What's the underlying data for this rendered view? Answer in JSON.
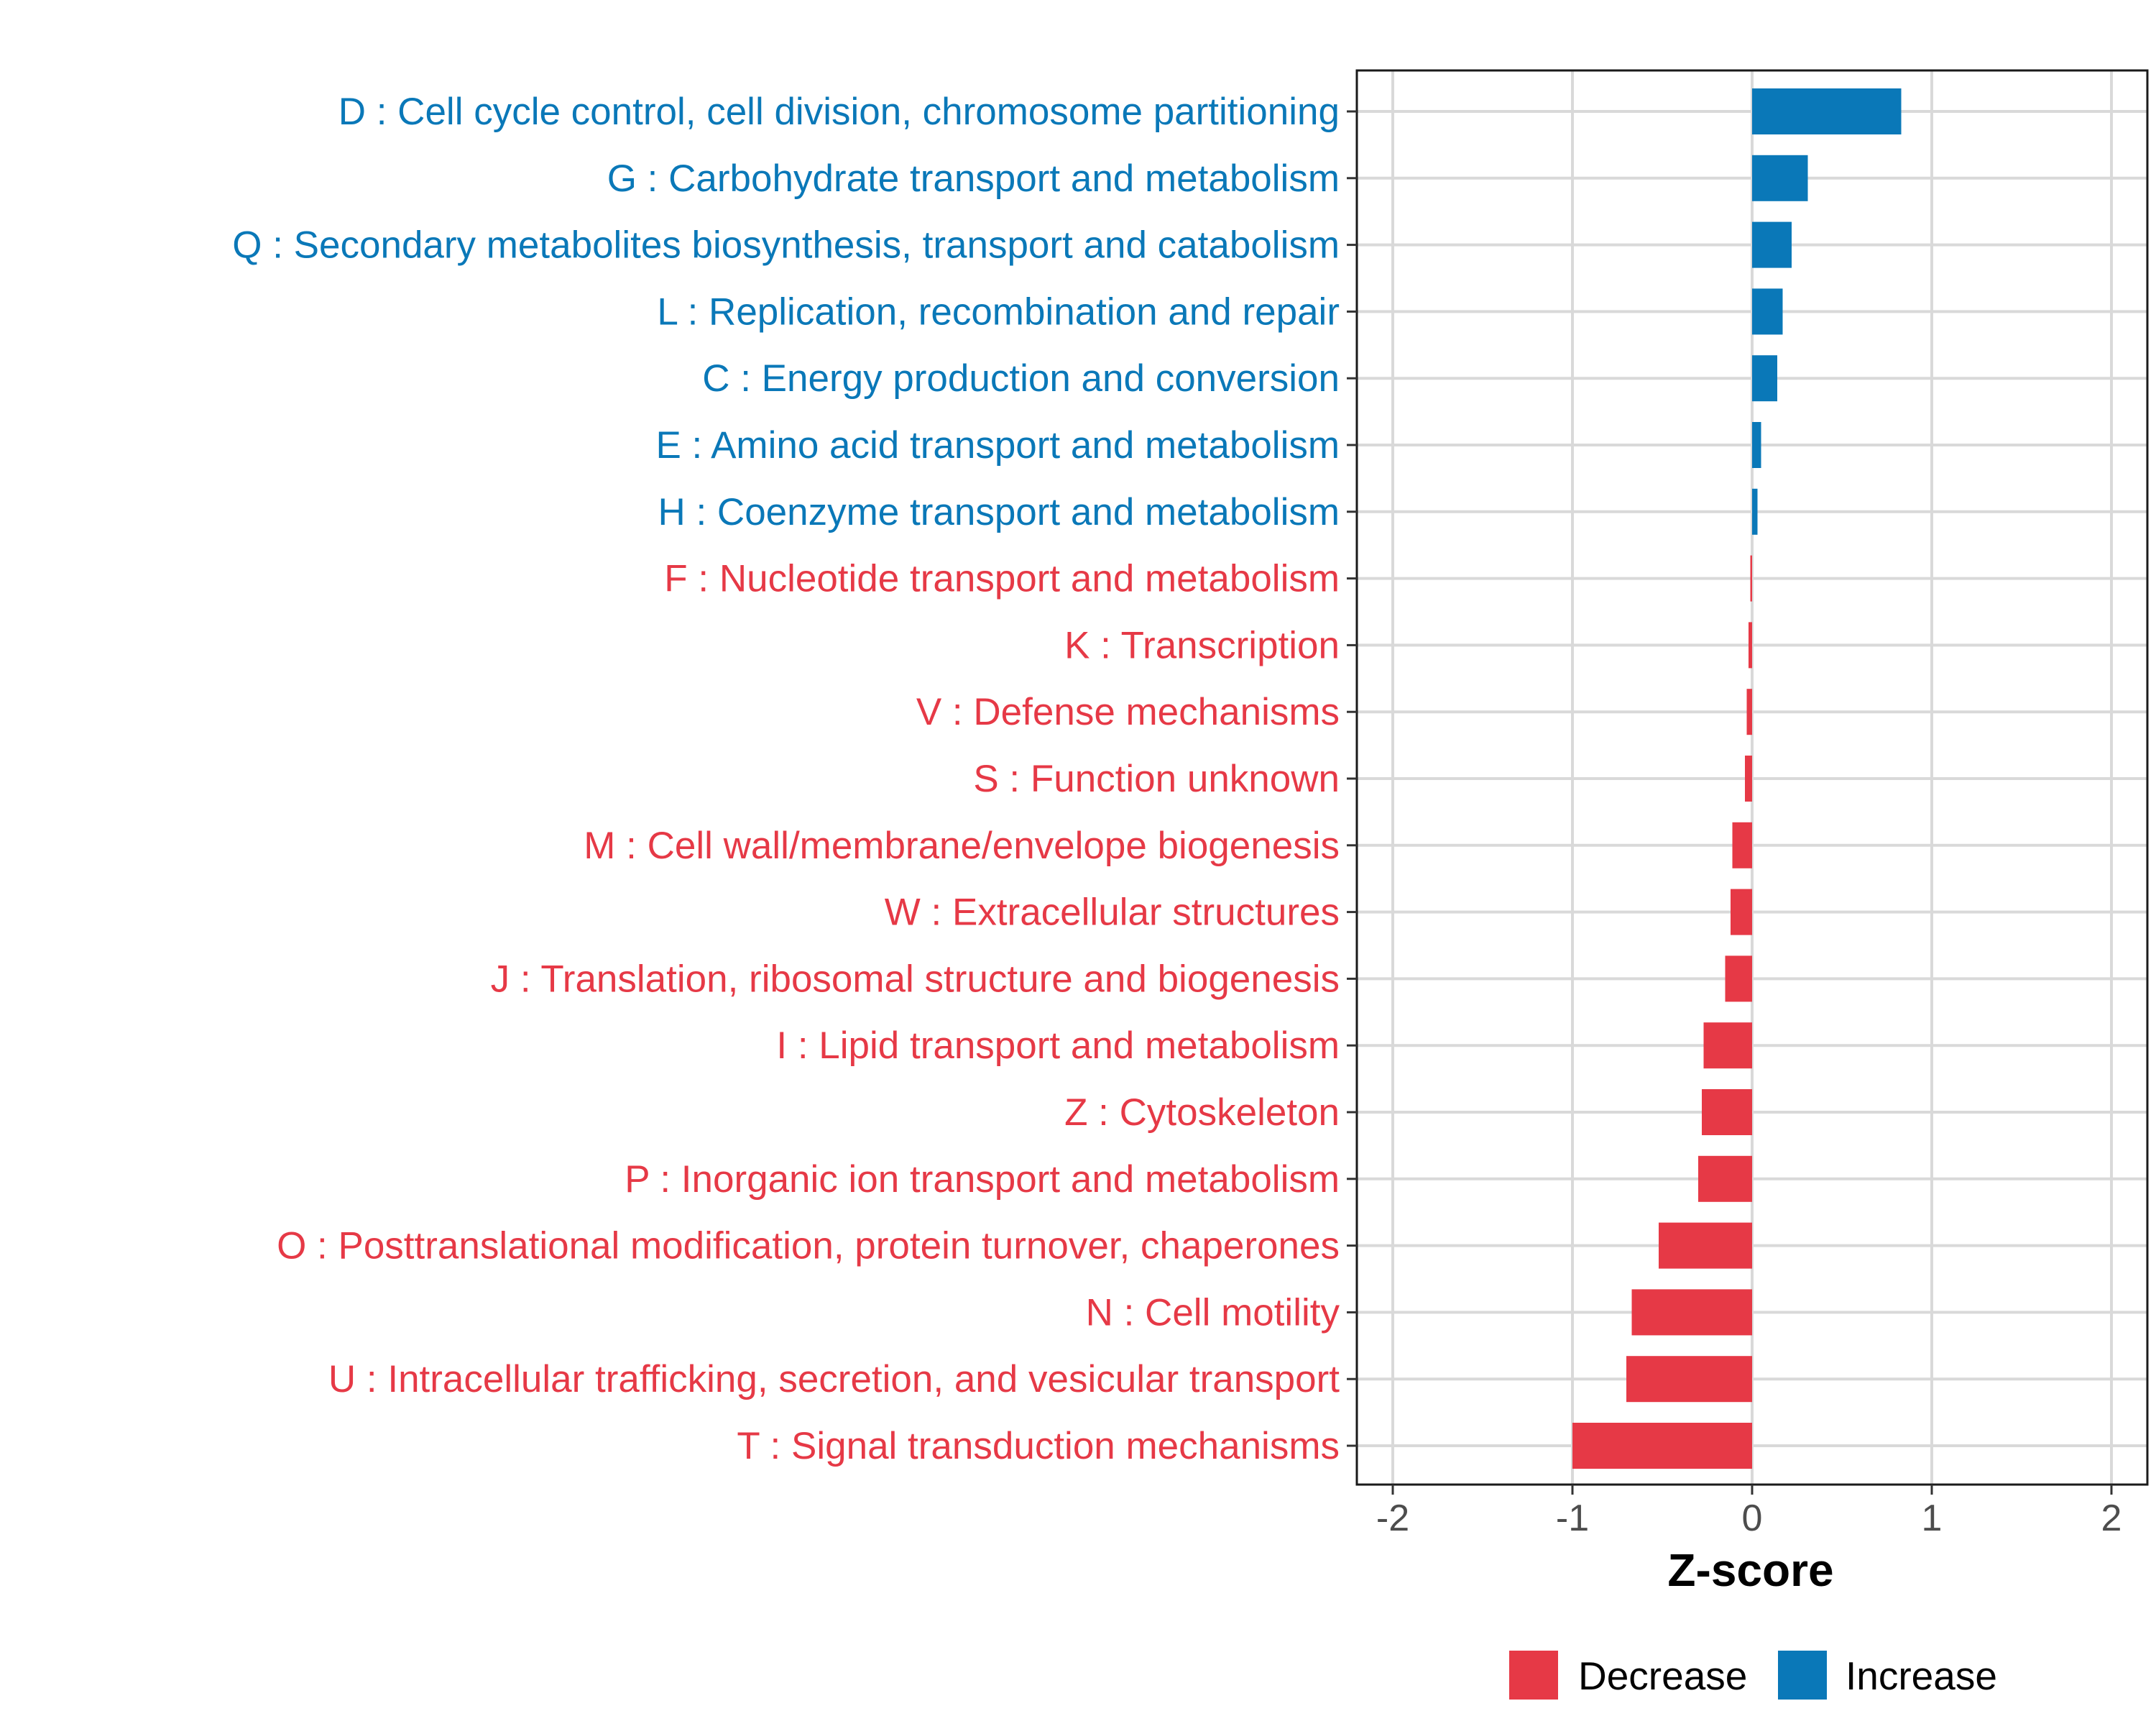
{
  "chart_data": {
    "type": "bar",
    "orientation": "horizontal",
    "title": "",
    "xlabel": "Z-score",
    "ylabel": "",
    "xlim": [
      -2.2,
      2.2
    ],
    "xticks": [
      -2,
      -1,
      0,
      1,
      2
    ],
    "xtick_labels": [
      "-2",
      "-1",
      "0",
      "1",
      "2"
    ],
    "grid": true,
    "legend_position": "bottom",
    "colors": {
      "Decrease": "#e63946",
      "Increase": "#0a78b8"
    },
    "legend": [
      {
        "label": "Decrease",
        "key": "Decrease"
      },
      {
        "label": "Increase",
        "key": "Increase"
      }
    ],
    "categories": [
      "D : Cell cycle control, cell division, chromosome partitioning",
      "G : Carbohydrate transport and metabolism",
      "Q : Secondary metabolites biosynthesis, transport and catabolism",
      "L : Replication, recombination and repair",
      "C : Energy production and conversion",
      "E : Amino acid transport and metabolism",
      "H : Coenzyme transport and metabolism",
      "F : Nucleotide transport and metabolism",
      "K : Transcription",
      "V : Defense mechanisms",
      "S : Function unknown",
      "M : Cell wall/membrane/envelope biogenesis",
      "W : Extracellular structures",
      "J : Translation, ribosomal structure and biogenesis",
      "I : Lipid transport and metabolism",
      "Z : Cytoskeleton",
      "P : Inorganic ion transport and metabolism",
      "O : Posttranslational modification, protein turnover, chaperones",
      "N : Cell motility",
      "U : Intracellular trafficking, secretion, and vesicular transport",
      "T : Signal transduction mechanisms"
    ],
    "values": [
      0.83,
      0.31,
      0.22,
      0.17,
      0.14,
      0.05,
      0.03,
      -0.01,
      -0.02,
      -0.03,
      -0.04,
      -0.11,
      -0.12,
      -0.15,
      -0.27,
      -0.28,
      -0.3,
      -0.52,
      -0.67,
      -0.7,
      -1.0
    ],
    "groups": [
      "Increase",
      "Increase",
      "Increase",
      "Increase",
      "Increase",
      "Increase",
      "Increase",
      "Decrease",
      "Decrease",
      "Decrease",
      "Decrease",
      "Decrease",
      "Decrease",
      "Decrease",
      "Decrease",
      "Decrease",
      "Decrease",
      "Decrease",
      "Decrease",
      "Decrease",
      "Decrease"
    ]
  }
}
